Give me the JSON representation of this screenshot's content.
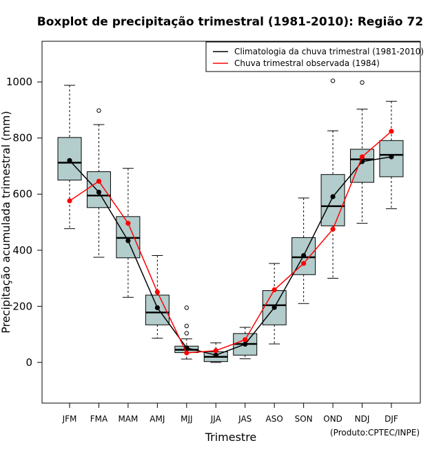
{
  "chart_data": {
    "type": "boxplot",
    "title": "Boxplot de precipitação trimestral (1981-2010): Região 72",
    "xlabel": "Trimestre",
    "ylabel": "Precipitação acumulada trimestral (mm)",
    "source": "(Produto:CPTEC/INPE)",
    "ylim": [
      -145,
      1145
    ],
    "yticks": [
      0,
      200,
      400,
      600,
      800,
      1000
    ],
    "categories": [
      "JFM",
      "FMA",
      "MAM",
      "AMJ",
      "MJJ",
      "JJA",
      "JAS",
      "ASO",
      "SON",
      "OND",
      "NDJ",
      "DJF"
    ],
    "boxes": [
      {
        "whisker_low": 477,
        "q1": 650,
        "median": 712,
        "q3": 802,
        "whisker_high": 988,
        "outliers": []
      },
      {
        "whisker_low": 375,
        "q1": 552,
        "median": 595,
        "q3": 680,
        "whisker_high": 848,
        "outliers": [
          898
        ]
      },
      {
        "whisker_low": 232,
        "q1": 373,
        "median": 444,
        "q3": 520,
        "whisker_high": 692,
        "outliers": []
      },
      {
        "whisker_low": 86,
        "q1": 134,
        "median": 178,
        "q3": 240,
        "whisker_high": 381,
        "outliers": []
      },
      {
        "whisker_low": 12,
        "q1": 35,
        "median": 45,
        "q3": 58,
        "whisker_high": 84,
        "outliers": [
          195,
          130,
          104
        ]
      },
      {
        "whisker_low": 0,
        "q1": 3,
        "median": 20,
        "q3": 38,
        "whisker_high": 70,
        "outliers": []
      },
      {
        "whisker_low": 13,
        "q1": 26,
        "median": 66,
        "q3": 103,
        "whisker_high": 125,
        "outliers": []
      },
      {
        "whisker_low": 66,
        "q1": 134,
        "median": 204,
        "q3": 256,
        "whisker_high": 353,
        "outliers": []
      },
      {
        "whisker_low": 210,
        "q1": 313,
        "median": 375,
        "q3": 445,
        "whisker_high": 586,
        "outliers": []
      },
      {
        "whisker_low": 300,
        "q1": 487,
        "median": 557,
        "q3": 670,
        "whisker_high": 826,
        "outliers": [
          1004
        ]
      },
      {
        "whisker_low": 496,
        "q1": 642,
        "median": 724,
        "q3": 760,
        "whisker_high": 903,
        "outliers": [
          998
        ]
      },
      {
        "whisker_low": 548,
        "q1": 662,
        "median": 740,
        "q3": 791,
        "whisker_high": 931,
        "outliers": []
      }
    ],
    "series": [
      {
        "name": "Climatologia da chuva trimestral (1981-2010)",
        "color": "#000000",
        "values": [
          720,
          607,
          434,
          195,
          52,
          26,
          65,
          196,
          381,
          591,
          716,
          733
        ]
      },
      {
        "name": "Chuva trimestral observada (1984)",
        "color": "#ff0000",
        "values": [
          576,
          646,
          496,
          251,
          34,
          42,
          81,
          259,
          353,
          475,
          733,
          824
        ]
      }
    ],
    "box_fill": "#b3cccc",
    "legend_position": "top-right"
  }
}
